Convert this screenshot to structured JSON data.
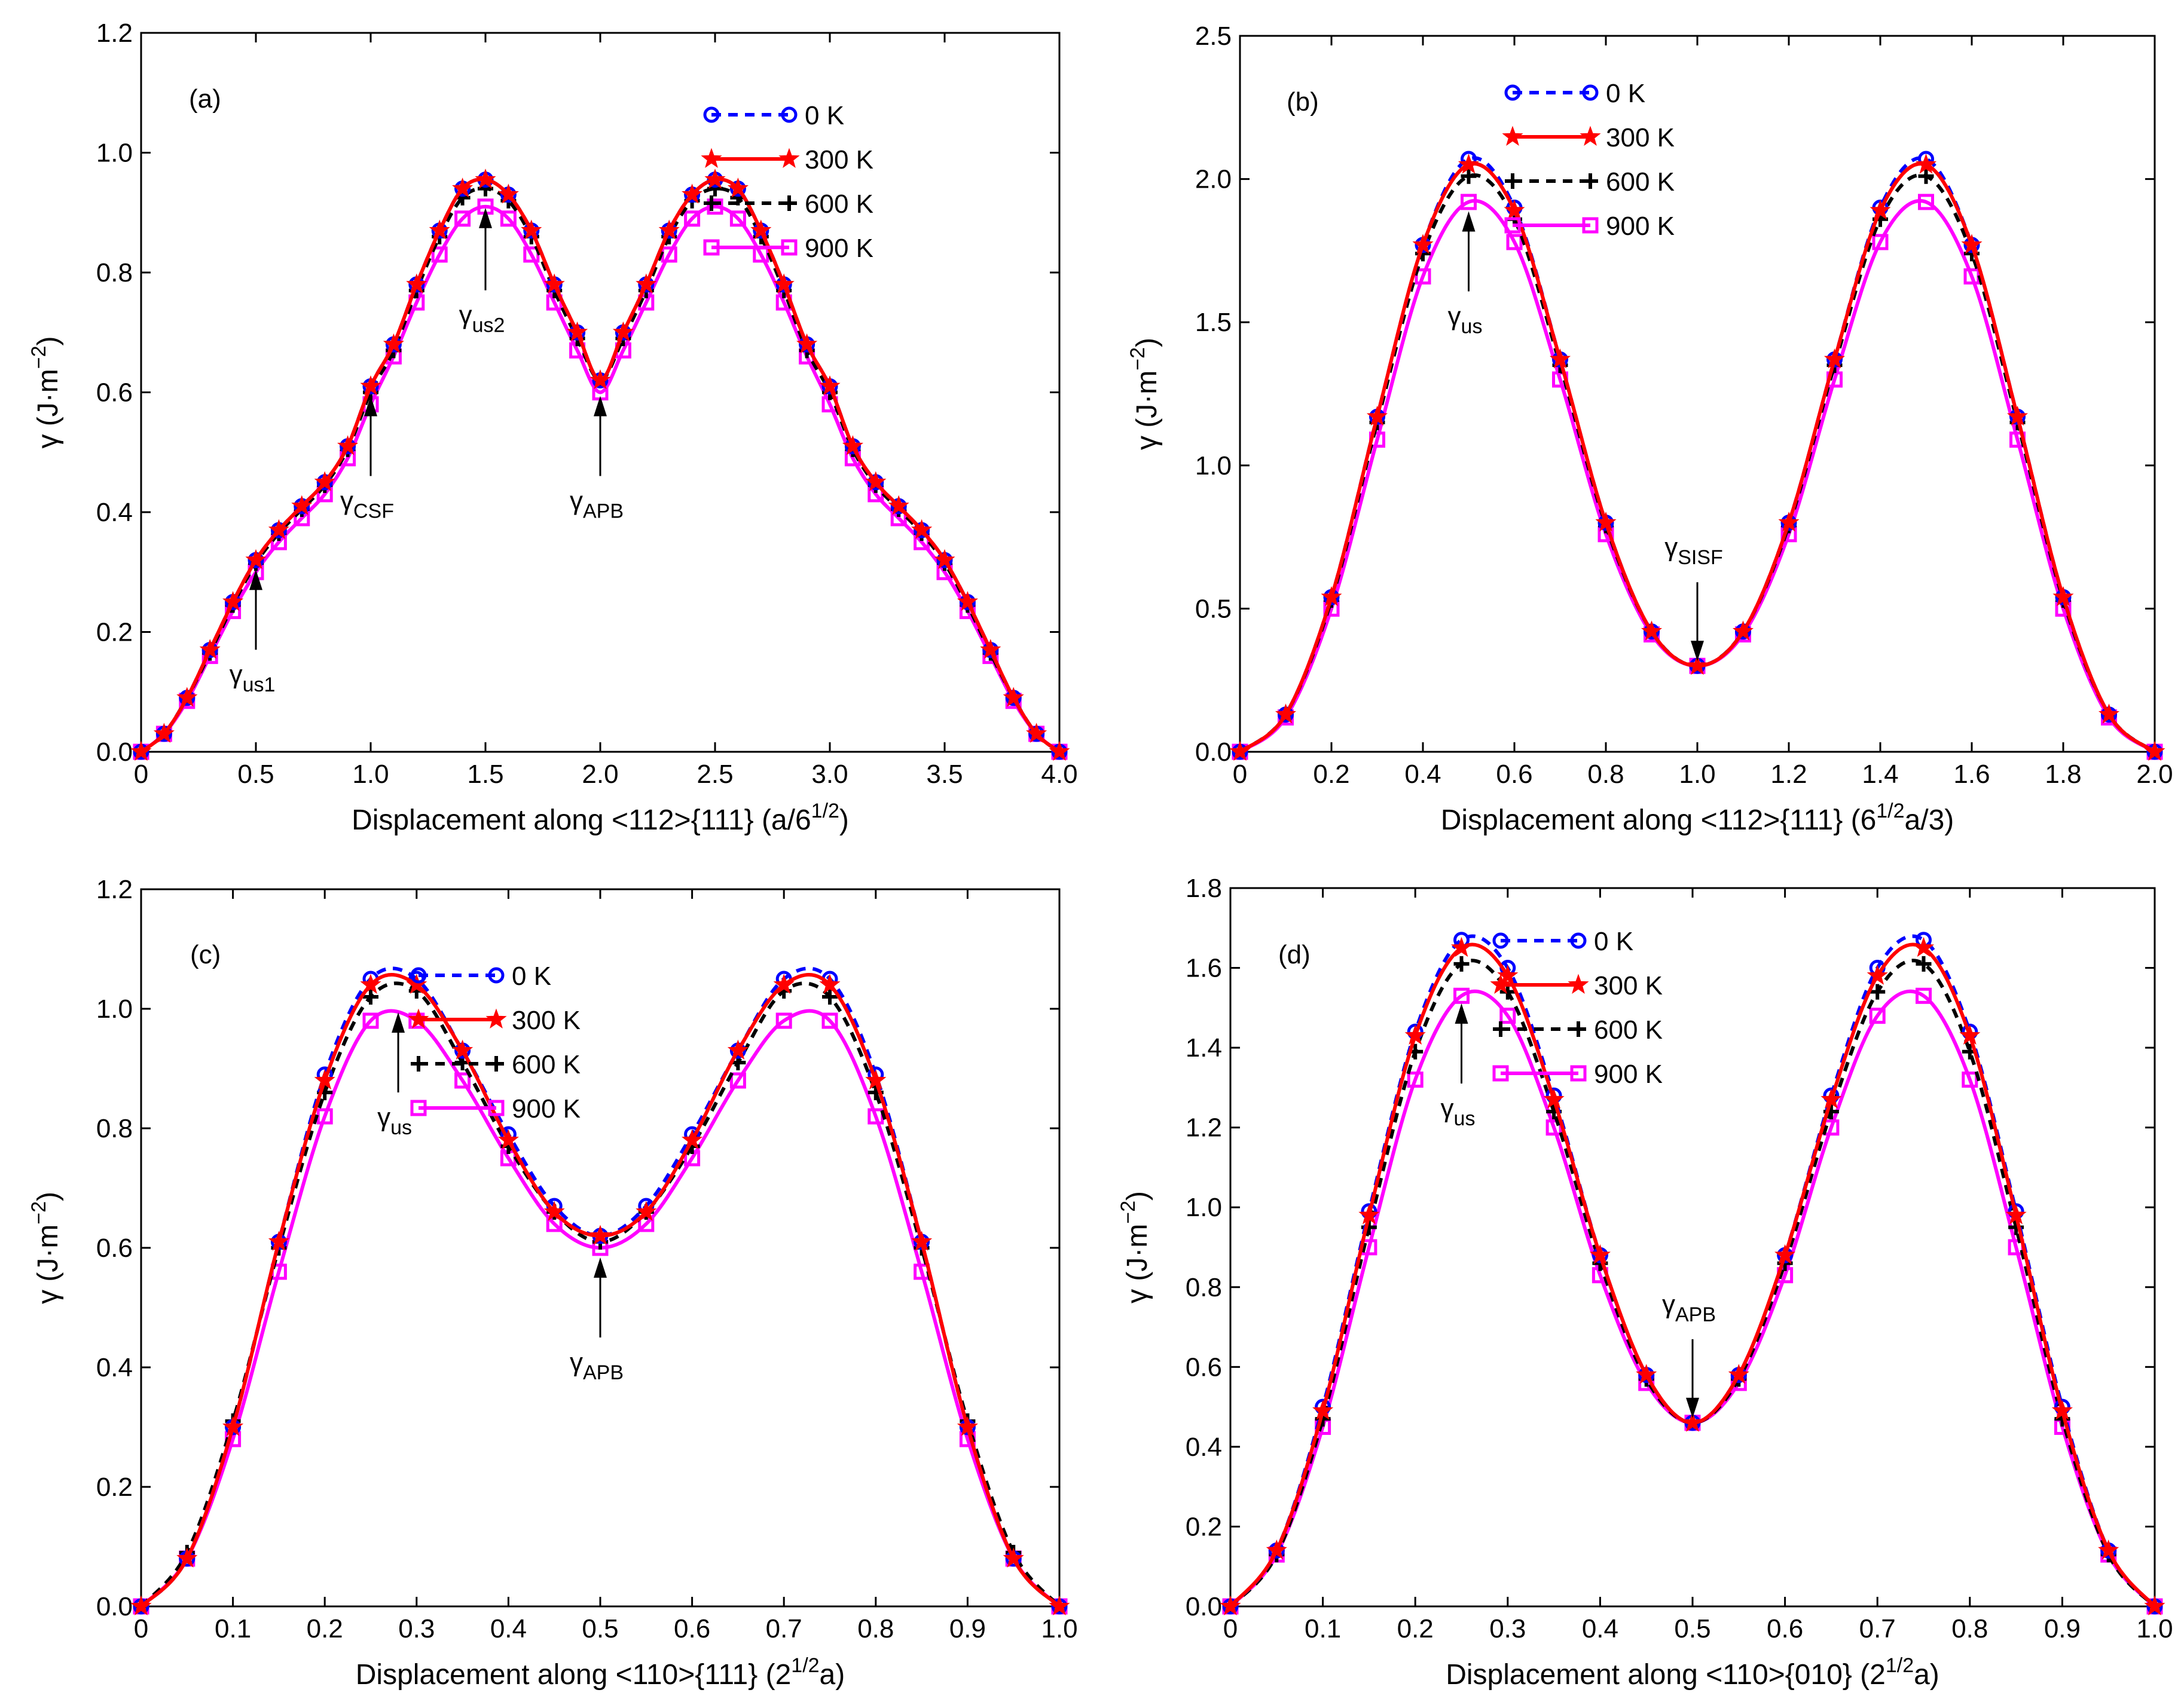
{
  "series_styles": [
    {
      "label": "0 K",
      "color": "#0000FF",
      "dash": "16,12",
      "marker": "circle"
    },
    {
      "label": "300 K",
      "color": "#FF0000",
      "dash": "",
      "marker": "star"
    },
    {
      "label": "600 K",
      "color": "#000000",
      "dash": "16,12",
      "marker": "plus"
    },
    {
      "label": "900 K",
      "color": "#FF00FF",
      "dash": "",
      "marker": "square"
    }
  ],
  "chart_data": [
    {
      "type": "line",
      "panel": "(a)",
      "xlabel": "Displacement along <112>{111} (a/6",
      "xlabel_sup": "1/2",
      "xlabel_tail": ")",
      "ylabel": "γ (J·m",
      "ylabel_sup": "−2",
      "ylabel_tail": ")",
      "xlim": [
        0,
        4
      ],
      "ylim": [
        0,
        1.2
      ],
      "xticks": [
        0,
        0.5,
        1,
        1.5,
        2,
        2.5,
        3,
        3.5,
        4
      ],
      "xtick_labels": [
        "0",
        "0.5",
        "1.0",
        "1.5",
        "2.0",
        "2.5",
        "3.0",
        "3.5",
        "4.0"
      ],
      "yticks": [
        0,
        0.2,
        0.4,
        0.6,
        0.8,
        1.0,
        1.2
      ],
      "ytick_labels": [
        "0.0",
        "0.2",
        "0.4",
        "0.6",
        "0.8",
        "1.0",
        "1.2"
      ],
      "x": [
        0,
        0.1,
        0.2,
        0.3,
        0.4,
        0.5,
        0.6,
        0.7,
        0.8,
        0.9,
        1.0,
        1.1,
        1.2,
        1.3,
        1.4,
        1.5,
        1.6,
        1.7,
        1.8,
        1.9,
        2.0,
        2.1,
        2.2,
        2.3,
        2.4,
        2.5,
        2.6,
        2.7,
        2.8,
        2.9,
        3.0,
        3.1,
        3.2,
        3.3,
        3.4,
        3.5,
        3.6,
        3.7,
        3.8,
        3.9,
        4.0
      ],
      "series": [
        {
          "values": [
            0,
            0.03,
            0.09,
            0.17,
            0.25,
            0.32,
            0.37,
            0.41,
            0.45,
            0.51,
            0.61,
            0.68,
            0.78,
            0.87,
            0.94,
            0.955,
            0.93,
            0.87,
            0.78,
            0.7,
            0.62,
            0.7,
            0.78,
            0.87,
            0.93,
            0.955,
            0.94,
            0.87,
            0.78,
            0.68,
            0.61,
            0.51,
            0.45,
            0.41,
            0.37,
            0.32,
            0.25,
            0.17,
            0.09,
            0.03,
            0
          ]
        },
        {
          "values": [
            0,
            0.03,
            0.09,
            0.17,
            0.25,
            0.32,
            0.37,
            0.41,
            0.45,
            0.51,
            0.61,
            0.68,
            0.78,
            0.87,
            0.94,
            0.955,
            0.93,
            0.87,
            0.78,
            0.7,
            0.62,
            0.7,
            0.78,
            0.87,
            0.93,
            0.955,
            0.94,
            0.87,
            0.78,
            0.68,
            0.61,
            0.51,
            0.45,
            0.41,
            0.37,
            0.32,
            0.25,
            0.17,
            0.09,
            0.03,
            0
          ]
        },
        {
          "values": [
            0,
            0.03,
            0.09,
            0.165,
            0.245,
            0.315,
            0.365,
            0.405,
            0.445,
            0.505,
            0.6,
            0.67,
            0.77,
            0.86,
            0.925,
            0.94,
            0.92,
            0.86,
            0.77,
            0.69,
            0.62,
            0.69,
            0.77,
            0.86,
            0.92,
            0.94,
            0.925,
            0.86,
            0.77,
            0.67,
            0.6,
            0.505,
            0.445,
            0.405,
            0.365,
            0.315,
            0.245,
            0.165,
            0.09,
            0.03,
            0
          ]
        },
        {
          "values": [
            0,
            0.03,
            0.085,
            0.16,
            0.235,
            0.3,
            0.35,
            0.39,
            0.43,
            0.49,
            0.58,
            0.66,
            0.75,
            0.83,
            0.89,
            0.91,
            0.89,
            0.83,
            0.75,
            0.67,
            0.6,
            0.67,
            0.75,
            0.83,
            0.89,
            0.91,
            0.89,
            0.83,
            0.75,
            0.66,
            0.58,
            0.49,
            0.43,
            0.39,
            0.35,
            0.3,
            0.235,
            0.16,
            0.085,
            0.03,
            0
          ]
        }
      ],
      "annotations": [
        {
          "base": "γ",
          "sub": "us1",
          "x": 0.5,
          "y": 0.31
        },
        {
          "base": "γ",
          "sub": "CSF",
          "x": 1.0,
          "y": 0.6
        },
        {
          "base": "γ",
          "sub": "us2",
          "x": 1.5,
          "y": 0.91
        },
        {
          "base": "γ",
          "sub": "APB",
          "x": 2.0,
          "y": 0.6
        }
      ]
    },
    {
      "type": "line",
      "panel": "(b)",
      "xlabel": "Displacement along <112>{111} (6",
      "xlabel_sup": "1/2",
      "xlabel_tail": "a/3)",
      "ylabel": "γ (J·m",
      "ylabel_sup": "−2",
      "ylabel_tail": ")",
      "xlim": [
        0,
        2
      ],
      "ylim": [
        0,
        2.5
      ],
      "xticks": [
        0,
        0.2,
        0.4,
        0.6,
        0.8,
        1.0,
        1.2,
        1.4,
        1.6,
        1.8,
        2.0
      ],
      "xtick_labels": [
        "0",
        "0.2",
        "0.4",
        "0.6",
        "0.8",
        "1.0",
        "1.2",
        "1.4",
        "1.6",
        "1.8",
        "2.0"
      ],
      "yticks": [
        0,
        0.5,
        1.0,
        1.5,
        2.0,
        2.5
      ],
      "ytick_labels": [
        "0.0",
        "0.5",
        "1.0",
        "1.5",
        "2.0",
        "2.5"
      ],
      "x": [
        0,
        0.1,
        0.2,
        0.3,
        0.4,
        0.5,
        0.6,
        0.7,
        0.8,
        0.9,
        1.0,
        1.1,
        1.2,
        1.3,
        1.4,
        1.5,
        1.6,
        1.7,
        1.8,
        1.9,
        2.0
      ],
      "series": [
        {
          "values": [
            0,
            0.13,
            0.54,
            1.17,
            1.77,
            2.07,
            1.9,
            1.37,
            0.8,
            0.42,
            0.3,
            0.42,
            0.8,
            1.37,
            1.9,
            2.07,
            1.77,
            1.17,
            0.54,
            0.13,
            0
          ]
        },
        {
          "values": [
            0,
            0.13,
            0.54,
            1.17,
            1.77,
            2.05,
            1.89,
            1.37,
            0.8,
            0.42,
            0.3,
            0.42,
            0.8,
            1.37,
            1.89,
            2.05,
            1.77,
            1.17,
            0.54,
            0.13,
            0
          ]
        },
        {
          "values": [
            0,
            0.13,
            0.53,
            1.15,
            1.74,
            2.01,
            1.86,
            1.35,
            0.79,
            0.42,
            0.3,
            0.42,
            0.79,
            1.35,
            1.86,
            2.01,
            1.74,
            1.15,
            0.53,
            0.13,
            0
          ]
        },
        {
          "values": [
            0,
            0.12,
            0.5,
            1.09,
            1.66,
            1.92,
            1.78,
            1.3,
            0.76,
            0.41,
            0.3,
            0.41,
            0.76,
            1.3,
            1.78,
            1.92,
            1.66,
            1.09,
            0.5,
            0.12,
            0
          ]
        }
      ],
      "annotations": [
        {
          "base": "γ",
          "sub": "us",
          "x": 0.5,
          "y": 1.9
        },
        {
          "base": "γ",
          "sub": "SISF",
          "x": 1.0,
          "y": 0.3
        }
      ]
    },
    {
      "type": "line",
      "panel": "(c)",
      "xlabel": "Displacement along <110>{111} (2",
      "xlabel_sup": "1/2",
      "xlabel_tail": "a)",
      "ylabel": "γ (J·m",
      "ylabel_sup": "−2",
      "ylabel_tail": ")",
      "xlim": [
        0,
        1
      ],
      "ylim": [
        0,
        1.2
      ],
      "xticks": [
        0,
        0.1,
        0.2,
        0.3,
        0.4,
        0.5,
        0.6,
        0.7,
        0.8,
        0.9,
        1.0
      ],
      "xtick_labels": [
        "0",
        "0.1",
        "0.2",
        "0.3",
        "0.4",
        "0.5",
        "0.6",
        "0.7",
        "0.8",
        "0.9",
        "1.0"
      ],
      "yticks": [
        0,
        0.2,
        0.4,
        0.6,
        0.8,
        1.0,
        1.2
      ],
      "ytick_labels": [
        "0.0",
        "0.2",
        "0.4",
        "0.6",
        "0.8",
        "1.0",
        "1.2"
      ],
      "x": [
        0,
        0.05,
        0.1,
        0.15,
        0.2,
        0.25,
        0.3,
        0.35,
        0.4,
        0.45,
        0.5,
        0.55,
        0.6,
        0.65,
        0.7,
        0.75,
        0.8,
        0.85,
        0.9,
        0.95,
        1.0
      ],
      "series": [
        {
          "values": [
            0,
            0.08,
            0.3,
            0.61,
            0.89,
            1.05,
            1.05,
            0.93,
            0.79,
            0.67,
            0.62,
            0.67,
            0.79,
            0.93,
            1.05,
            1.05,
            0.89,
            0.61,
            0.3,
            0.08,
            0
          ]
        },
        {
          "values": [
            0,
            0.08,
            0.3,
            0.61,
            0.88,
            1.04,
            1.04,
            0.93,
            0.78,
            0.66,
            0.62,
            0.66,
            0.78,
            0.93,
            1.04,
            1.04,
            0.88,
            0.61,
            0.3,
            0.08,
            0
          ]
        },
        {
          "values": [
            0,
            0.09,
            0.31,
            0.6,
            0.86,
            1.02,
            1.03,
            0.91,
            0.77,
            0.66,
            0.61,
            0.66,
            0.77,
            0.91,
            1.03,
            1.02,
            0.86,
            0.6,
            0.31,
            0.09,
            0
          ]
        },
        {
          "values": [
            0,
            0.08,
            0.28,
            0.56,
            0.82,
            0.98,
            0.98,
            0.88,
            0.75,
            0.64,
            0.6,
            0.64,
            0.75,
            0.88,
            0.98,
            0.98,
            0.82,
            0.56,
            0.28,
            0.08,
            0
          ]
        }
      ],
      "annotations": [
        {
          "base": "γ",
          "sub": "us",
          "x": 0.28,
          "y": 1.0
        },
        {
          "base": "γ",
          "sub": "APB",
          "x": 0.5,
          "y": 0.59
        }
      ]
    },
    {
      "type": "line",
      "panel": "(d)",
      "xlabel": "Displacement along <110>{010} (2",
      "xlabel_sup": "1/2",
      "xlabel_tail": "a)",
      "ylabel": "γ (J·m",
      "ylabel_sup": "−2",
      "ylabel_tail": ")",
      "xlim": [
        0,
        1
      ],
      "ylim": [
        0,
        1.8
      ],
      "xticks": [
        0,
        0.1,
        0.2,
        0.3,
        0.4,
        0.5,
        0.6,
        0.7,
        0.8,
        0.9,
        1.0
      ],
      "xtick_labels": [
        "0",
        "0.1",
        "0.2",
        "0.3",
        "0.4",
        "0.5",
        "0.6",
        "0.7",
        "0.8",
        "0.9",
        "1.0"
      ],
      "yticks": [
        0,
        0.2,
        0.4,
        0.6,
        0.8,
        1.0,
        1.2,
        1.4,
        1.6,
        1.8
      ],
      "ytick_labels": [
        "0.0",
        "0.2",
        "0.4",
        "0.6",
        "0.8",
        "1.0",
        "1.2",
        "1.4",
        "1.6",
        "1.8"
      ],
      "x": [
        0,
        0.05,
        0.1,
        0.15,
        0.2,
        0.25,
        0.3,
        0.35,
        0.4,
        0.45,
        0.5,
        0.55,
        0.6,
        0.65,
        0.7,
        0.75,
        0.8,
        0.85,
        0.9,
        0.95,
        1.0
      ],
      "series": [
        {
          "values": [
            0,
            0.14,
            0.5,
            0.99,
            1.44,
            1.67,
            1.6,
            1.28,
            0.88,
            0.58,
            0.46,
            0.58,
            0.88,
            1.28,
            1.6,
            1.67,
            1.44,
            0.99,
            0.5,
            0.14,
            0
          ]
        },
        {
          "values": [
            0,
            0.14,
            0.49,
            0.98,
            1.43,
            1.65,
            1.58,
            1.27,
            0.88,
            0.58,
            0.46,
            0.58,
            0.88,
            1.27,
            1.58,
            1.65,
            1.43,
            0.98,
            0.49,
            0.14,
            0
          ]
        },
        {
          "values": [
            0,
            0.13,
            0.47,
            0.95,
            1.39,
            1.61,
            1.54,
            1.24,
            0.86,
            0.57,
            0.46,
            0.57,
            0.86,
            1.24,
            1.54,
            1.61,
            1.39,
            0.95,
            0.47,
            0.13,
            0
          ]
        },
        {
          "values": [
            0,
            0.13,
            0.45,
            0.9,
            1.32,
            1.53,
            1.48,
            1.2,
            0.83,
            0.56,
            0.46,
            0.56,
            0.83,
            1.2,
            1.48,
            1.53,
            1.32,
            0.9,
            0.45,
            0.13,
            0
          ]
        }
      ],
      "annotations": [
        {
          "base": "γ",
          "sub": "us",
          "x": 0.25,
          "y": 1.52
        },
        {
          "base": "γ",
          "sub": "APB",
          "x": 0.5,
          "y": 0.46
        }
      ]
    }
  ]
}
